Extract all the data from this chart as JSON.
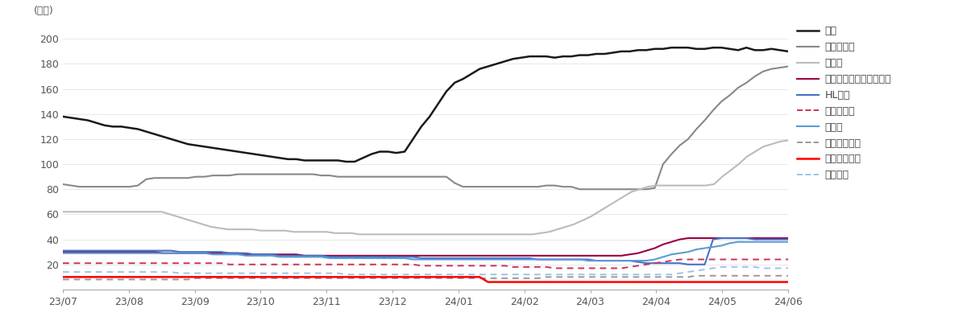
{
  "title": "",
  "ylabel": "(만주)",
  "ylim": [
    0,
    210
  ],
  "yticks": [
    0,
    20,
    40,
    60,
    80,
    100,
    120,
    140,
    160,
    180,
    200
  ],
  "xtick_labels": [
    "23/07",
    "23/08",
    "23/09",
    "23/10",
    "23/11",
    "23/12",
    "24/01",
    "24/02",
    "24/03",
    "24/04",
    "24/05",
    "24/06"
  ],
  "background_color": "#ffffff",
  "series": [
    {
      "name": "기아",
      "color": "#1a1a1a",
      "linestyle": "solid",
      "linewidth": 1.8,
      "values": [
        138,
        137,
        136,
        135,
        133,
        131,
        130,
        130,
        129,
        128,
        126,
        124,
        122,
        120,
        118,
        116,
        115,
        114,
        113,
        112,
        111,
        110,
        109,
        108,
        107,
        106,
        105,
        104,
        104,
        103,
        103,
        103,
        103,
        103,
        102,
        102,
        105,
        108,
        110,
        110,
        109,
        110,
        120,
        130,
        138,
        148,
        158,
        165,
        168,
        172,
        176,
        178,
        180,
        182,
        184,
        185,
        186,
        186,
        186,
        185,
        186,
        186,
        187,
        187,
        188,
        188,
        189,
        190,
        190,
        191,
        191,
        192,
        192,
        193,
        193,
        193,
        192,
        192,
        193,
        193,
        192,
        191,
        193,
        191,
        191,
        192,
        191,
        190
      ]
    },
    {
      "name": "한온시스템",
      "color": "#888888",
      "linestyle": "solid",
      "linewidth": 1.5,
      "values": [
        84,
        83,
        82,
        82,
        82,
        82,
        82,
        82,
        82,
        83,
        88,
        89,
        89,
        89,
        89,
        89,
        90,
        90,
        91,
        91,
        91,
        92,
        92,
        92,
        92,
        92,
        92,
        92,
        92,
        92,
        92,
        91,
        91,
        90,
        90,
        90,
        90,
        90,
        90,
        90,
        90,
        90,
        90,
        90,
        90,
        90,
        90,
        85,
        82,
        82,
        82,
        82,
        82,
        82,
        82,
        82,
        82,
        82,
        83,
        83,
        82,
        82,
        80,
        80,
        80,
        80,
        80,
        80,
        80,
        80,
        80,
        81,
        100,
        108,
        115,
        120,
        128,
        135,
        143,
        150,
        155,
        161,
        165,
        170,
        174,
        176,
        177,
        178
      ]
    },
    {
      "name": "현대차",
      "color": "#bbbbbb",
      "linestyle": "solid",
      "linewidth": 1.5,
      "values": [
        62,
        62,
        62,
        62,
        62,
        62,
        62,
        62,
        62,
        62,
        62,
        62,
        62,
        60,
        58,
        56,
        54,
        52,
        50,
        49,
        48,
        48,
        48,
        48,
        47,
        47,
        47,
        47,
        46,
        46,
        46,
        46,
        46,
        45,
        45,
        45,
        44,
        44,
        44,
        44,
        44,
        44,
        44,
        44,
        44,
        44,
        44,
        44,
        44,
        44,
        44,
        44,
        44,
        44,
        44,
        44,
        44,
        44,
        45,
        46,
        48,
        50,
        52,
        55,
        58,
        62,
        66,
        70,
        74,
        78,
        80,
        82,
        83,
        83,
        83,
        83,
        83,
        83,
        83,
        84,
        90,
        95,
        100,
        106,
        110,
        114,
        116,
        118,
        119
      ]
    },
    {
      "name": "한국타이어앤테크놀로지",
      "color": "#990044",
      "linestyle": "solid",
      "linewidth": 1.5,
      "values": [
        30,
        30,
        30,
        30,
        30,
        30,
        30,
        30,
        30,
        30,
        30,
        30,
        29,
        29,
        29,
        29,
        29,
        29,
        29,
        29,
        29,
        29,
        28,
        28,
        28,
        28,
        28,
        28,
        28,
        27,
        27,
        27,
        27,
        27,
        27,
        27,
        27,
        27,
        27,
        27,
        27,
        27,
        27,
        27,
        27,
        27,
        27,
        27,
        27,
        27,
        27,
        27,
        27,
        27,
        27,
        27,
        27,
        27,
        27,
        27,
        27,
        27,
        27,
        27,
        27,
        27,
        27,
        27,
        28,
        29,
        31,
        33,
        36,
        38,
        40,
        41,
        41,
        41,
        41,
        41,
        41,
        41,
        41,
        41,
        41,
        41,
        41,
        41
      ]
    },
    {
      "name": "HL만도",
      "color": "#4472C4",
      "linestyle": "solid",
      "linewidth": 1.5,
      "values": [
        31,
        31,
        31,
        31,
        31,
        31,
        31,
        31,
        31,
        31,
        31,
        31,
        31,
        31,
        30,
        30,
        30,
        30,
        30,
        30,
        29,
        29,
        29,
        28,
        28,
        28,
        27,
        27,
        27,
        27,
        27,
        27,
        26,
        26,
        26,
        26,
        26,
        26,
        26,
        26,
        26,
        26,
        26,
        25,
        25,
        25,
        25,
        25,
        25,
        25,
        25,
        25,
        25,
        25,
        25,
        25,
        25,
        24,
        24,
        24,
        24,
        24,
        24,
        24,
        23,
        23,
        23,
        23,
        23,
        22,
        21,
        21,
        21,
        21,
        21,
        20,
        20,
        20,
        40,
        41,
        41,
        41,
        41,
        40,
        40,
        40,
        40,
        40
      ]
    },
    {
      "name": "현대모비스",
      "color": "#cc3355",
      "linestyle": "dashed",
      "linewidth": 1.4,
      "values": [
        21,
        21,
        21,
        21,
        21,
        21,
        21,
        21,
        21,
        21,
        21,
        21,
        21,
        21,
        21,
        21,
        21,
        21,
        21,
        21,
        20,
        20,
        20,
        20,
        20,
        20,
        20,
        20,
        20,
        20,
        20,
        20,
        20,
        20,
        20,
        20,
        20,
        20,
        20,
        20,
        20,
        20,
        20,
        19,
        19,
        19,
        19,
        19,
        19,
        19,
        19,
        19,
        19,
        19,
        18,
        18,
        18,
        18,
        18,
        17,
        17,
        17,
        17,
        17,
        17,
        17,
        17,
        17,
        18,
        19,
        20,
        21,
        22,
        23,
        24,
        24,
        24,
        24,
        24,
        24,
        24,
        24,
        24,
        24,
        24,
        24,
        24,
        24
      ]
    },
    {
      "name": "에스엘",
      "color": "#5b9bd5",
      "linestyle": "solid",
      "linewidth": 1.5,
      "values": [
        29,
        29,
        29,
        29,
        29,
        29,
        29,
        29,
        29,
        29,
        29,
        29,
        29,
        29,
        29,
        29,
        29,
        29,
        28,
        28,
        28,
        28,
        27,
        27,
        27,
        27,
        26,
        26,
        26,
        26,
        26,
        26,
        25,
        25,
        25,
        25,
        25,
        25,
        25,
        25,
        25,
        25,
        24,
        24,
        24,
        24,
        24,
        24,
        24,
        24,
        24,
        24,
        24,
        24,
        24,
        24,
        24,
        24,
        24,
        24,
        24,
        24,
        24,
        23,
        23,
        23,
        23,
        23,
        23,
        23,
        23,
        24,
        26,
        28,
        29,
        30,
        32,
        33,
        34,
        35,
        37,
        38,
        38,
        38,
        38,
        38,
        38,
        38
      ]
    },
    {
      "name": "현대오토에버",
      "color": "#999999",
      "linestyle": "dashed",
      "linewidth": 1.4,
      "values": [
        8,
        8,
        8,
        8,
        8,
        8,
        8,
        8,
        8,
        8,
        8,
        8,
        8,
        8,
        8,
        8,
        9,
        9,
        9,
        9,
        9,
        9,
        9,
        9,
        9,
        9,
        9,
        9,
        9,
        9,
        9,
        9,
        9,
        9,
        9,
        9,
        9,
        9,
        9,
        9,
        9,
        9,
        9,
        9,
        9,
        9,
        9,
        9,
        9,
        9,
        9,
        9,
        9,
        9,
        9,
        9,
        9,
        9,
        10,
        10,
        10,
        10,
        10,
        10,
        10,
        10,
        10,
        10,
        10,
        10,
        10,
        10,
        10,
        10,
        10,
        10,
        11,
        11,
        11,
        11,
        11,
        11,
        11,
        11,
        11,
        11,
        11,
        11
      ]
    },
    {
      "name": "현대글로비스",
      "color": "#ff0000",
      "linestyle": "solid",
      "linewidth": 1.8,
      "values": [
        10,
        10,
        10,
        10,
        10,
        10,
        10,
        10,
        10,
        10,
        10,
        10,
        10,
        10,
        10,
        10,
        10,
        10,
        10,
        10,
        10,
        10,
        10,
        10,
        10,
        10,
        10,
        10,
        10,
        10,
        10,
        10,
        10,
        10,
        10,
        10,
        10,
        10,
        10,
        10,
        10,
        10,
        10,
        10,
        10,
        10,
        10,
        10,
        10,
        10,
        10,
        6,
        6,
        6,
        6,
        6,
        6,
        6,
        6,
        6,
        6,
        6,
        6,
        6,
        6,
        6,
        6,
        6,
        6,
        6,
        6,
        6,
        6,
        6,
        6,
        6,
        6,
        6,
        6,
        6,
        6,
        6,
        6,
        6,
        6,
        6,
        6,
        6
      ]
    },
    {
      "name": "현대위아",
      "color": "#9dc3e6",
      "linestyle": "dashed",
      "linewidth": 1.4,
      "values": [
        14,
        14,
        14,
        14,
        14,
        14,
        14,
        14,
        14,
        14,
        14,
        14,
        14,
        14,
        13,
        13,
        13,
        13,
        13,
        13,
        13,
        13,
        13,
        13,
        13,
        13,
        13,
        13,
        13,
        13,
        13,
        13,
        13,
        13,
        12,
        12,
        12,
        12,
        12,
        12,
        12,
        12,
        12,
        12,
        12,
        12,
        12,
        12,
        12,
        12,
        12,
        12,
        12,
        12,
        12,
        12,
        12,
        12,
        12,
        12,
        12,
        12,
        12,
        12,
        12,
        12,
        12,
        12,
        12,
        12,
        12,
        12,
        12,
        12,
        13,
        14,
        15,
        16,
        17,
        18,
        18,
        18,
        18,
        18,
        17,
        17,
        17,
        17
      ]
    }
  ]
}
